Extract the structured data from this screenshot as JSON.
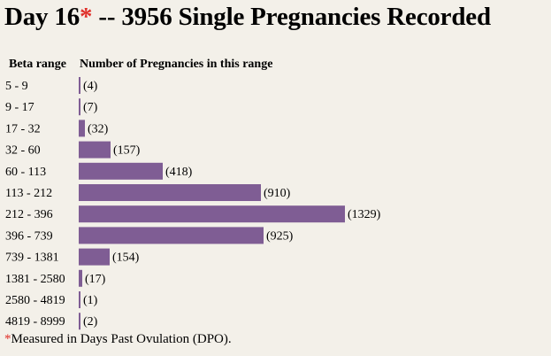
{
  "title": {
    "prefix": "Day 16",
    "star": "*",
    "suffix": " -- 3956 Single Pregnancies Recorded"
  },
  "headers": {
    "range": "Beta range",
    "count": "Number of Pregnancies in this range"
  },
  "footnote": {
    "star": "*",
    "text": "Measured in Days Past Ovulation (DPO)."
  },
  "colors": {
    "bar": "#7f5d94",
    "star": "#e0302a",
    "background": "#f3f0e9"
  },
  "chart_data": {
    "type": "bar",
    "orientation": "horizontal",
    "title": "Day 16* -- 3956 Single Pregnancies Recorded",
    "xlabel": "Number of Pregnancies in this range",
    "ylabel": "Beta range",
    "categories": [
      "5 - 9",
      "9 - 17",
      "17 - 32",
      "32 - 60",
      "60 - 113",
      "113 - 212",
      "212 - 396",
      "396 - 739",
      "739 - 1381",
      "1381 - 2580",
      "2580 - 4819",
      "4819 - 8999"
    ],
    "values": [
      4,
      7,
      32,
      157,
      418,
      910,
      1329,
      925,
      154,
      17,
      1,
      2
    ],
    "value_labels": [
      "(4)",
      "(7)",
      "(32)",
      "(157)",
      "(418)",
      "(910)",
      "(1329)",
      "(925)",
      "(154)",
      "(17)",
      "(1)",
      "(2)"
    ],
    "xlim": [
      0,
      1329
    ],
    "grid": false,
    "legend": "none"
  }
}
